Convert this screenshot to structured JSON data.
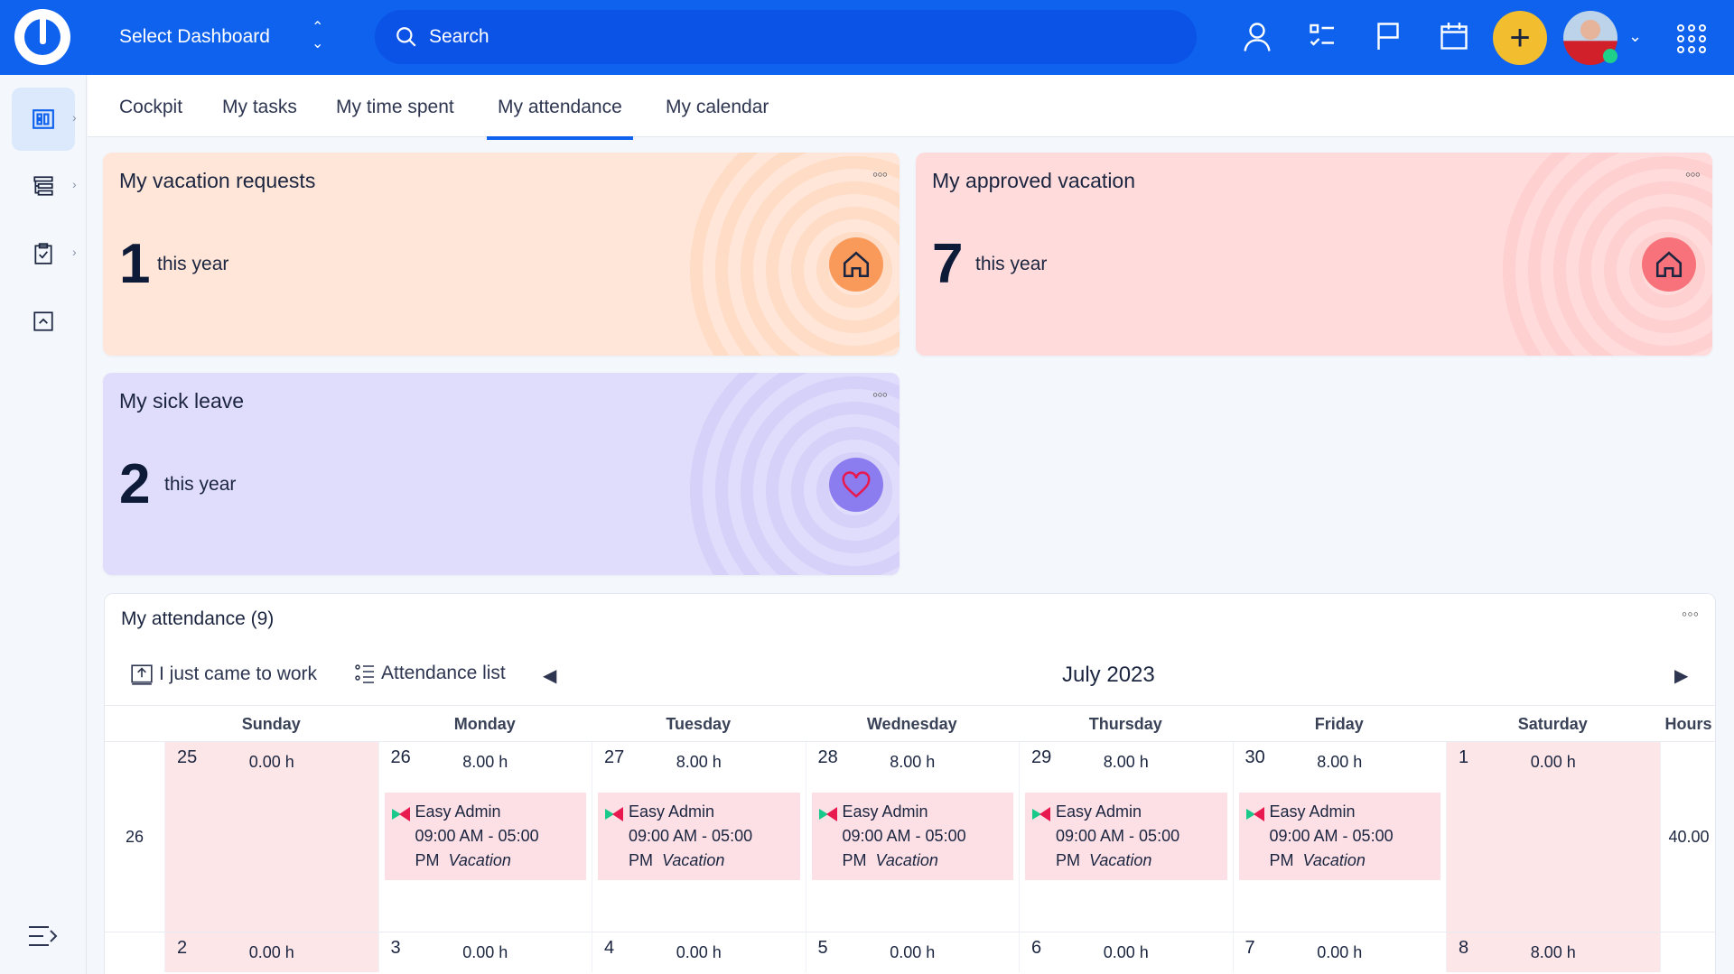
{
  "header": {
    "dashboard_select": "Select Dashboard",
    "search_placeholder": "Search"
  },
  "tabs": [
    {
      "label": "Cockpit"
    },
    {
      "label": "My tasks"
    },
    {
      "label": "My time spent"
    },
    {
      "label": "My attendance",
      "active": true
    },
    {
      "label": "My calendar"
    }
  ],
  "cards": {
    "vacation_requests": {
      "title": "My vacation requests",
      "value": "1",
      "suffix": "this year",
      "icon": "home-icon",
      "color": "#f99a5b"
    },
    "approved_vacation": {
      "title": "My approved vacation",
      "value": "7",
      "suffix": "this year",
      "icon": "home-icon",
      "color": "#f7727a"
    },
    "sick_leave": {
      "title": "My sick leave",
      "value": "2",
      "suffix": "this year",
      "icon": "heart-icon",
      "color": "#8b7cf0"
    }
  },
  "attendance": {
    "title": "My attendance (9)",
    "came_to_work": "I just came to work",
    "attendance_list": "Attendance list",
    "month": "July 2023",
    "columns": [
      "Sunday",
      "Monday",
      "Tuesday",
      "Wednesday",
      "Thursday",
      "Friday",
      "Saturday",
      "Hours"
    ],
    "weeks": [
      {
        "week": "26",
        "hours": "40.00",
        "days": [
          {
            "day": "25",
            "hours": "0.00 h",
            "weekend": true
          },
          {
            "day": "26",
            "hours": "8.00 h",
            "event": {
              "user": "Easy Admin",
              "time": "09:00 AM - 05:00",
              "time2": "PM",
              "type": "Vacation"
            }
          },
          {
            "day": "27",
            "hours": "8.00 h",
            "event": {
              "user": "Easy Admin",
              "time": "09:00 AM - 05:00",
              "time2": "PM",
              "type": "Vacation"
            }
          },
          {
            "day": "28",
            "hours": "8.00 h",
            "event": {
              "user": "Easy Admin",
              "time": "09:00 AM - 05:00",
              "time2": "PM",
              "type": "Vacation"
            }
          },
          {
            "day": "29",
            "hours": "8.00 h",
            "event": {
              "user": "Easy Admin",
              "time": "09:00 AM - 05:00",
              "time2": "PM",
              "type": "Vacation"
            }
          },
          {
            "day": "30",
            "hours": "8.00 h",
            "event": {
              "user": "Easy Admin",
              "time": "09:00 AM - 05:00",
              "time2": "PM",
              "type": "Vacation"
            }
          },
          {
            "day": "1",
            "hours": "0.00 h",
            "weekend": true
          }
        ]
      },
      {
        "week": "",
        "hours": "",
        "days": [
          {
            "day": "2",
            "hours": "0.00 h",
            "weekend": true
          },
          {
            "day": "3",
            "hours": "0.00 h"
          },
          {
            "day": "4",
            "hours": "0.00 h"
          },
          {
            "day": "5",
            "hours": "0.00 h"
          },
          {
            "day": "6",
            "hours": "0.00 h"
          },
          {
            "day": "7",
            "hours": "0.00 h"
          },
          {
            "day": "8",
            "hours": "8.00 h",
            "weekend": true
          }
        ]
      }
    ]
  }
}
